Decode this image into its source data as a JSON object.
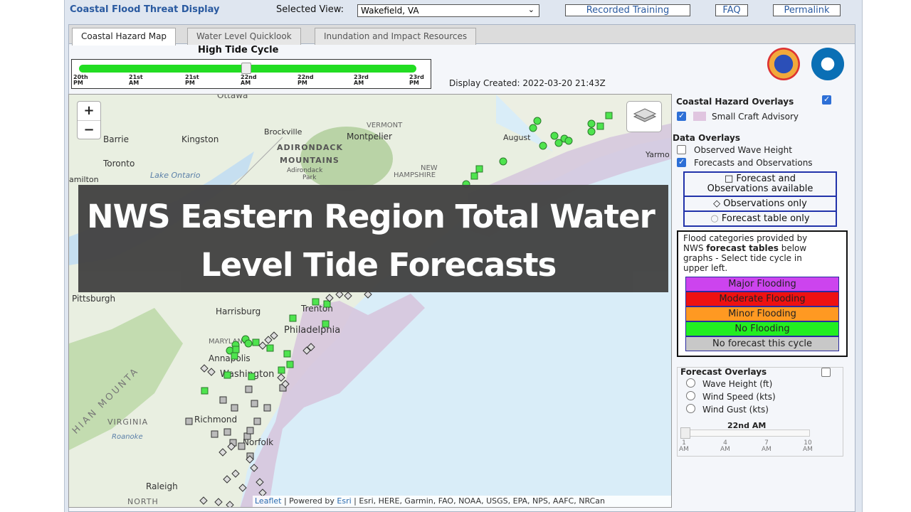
{
  "app": {
    "title": "Coastal Flood Threat Display",
    "selected_view_label": "Selected View:",
    "selected_view_value": "Wakefield, VA",
    "buttons": [
      "Recorded Training",
      "FAQ",
      "Permalink"
    ]
  },
  "tabs": [
    "Coastal Hazard Map",
    "Water Level Quicklook",
    "Inundation and Impact Resources"
  ],
  "tide": {
    "title": "High Tide Cycle",
    "ticks": [
      {
        "day": "20th",
        "ampm": "PM"
      },
      {
        "day": "21st",
        "ampm": "AM"
      },
      {
        "day": "21st",
        "ampm": "PM"
      },
      {
        "day": "22nd",
        "ampm": "AM"
      },
      {
        "day": "22nd",
        "ampm": "PM"
      },
      {
        "day": "23rd",
        "ampm": "AM"
      },
      {
        "day": "23rd",
        "ampm": "PM"
      }
    ],
    "selected_index": 3
  },
  "display_created": "Display Created: 2022-03-20 21:43Z",
  "map": {
    "zoom_in": "+",
    "zoom_out": "−",
    "places": [
      "Ottawa",
      "Barrie",
      "Kingston",
      "Brockville",
      "Montpelier",
      "VERMONT",
      "August",
      "Yarmo",
      "ADIRONDACK",
      "MOUNTAINS",
      "Adirondack",
      "Park",
      "Toronto",
      "Lake Ontario",
      "amilton",
      "NEW",
      "HAMPSHIRE",
      "Pittsburgh",
      "Harrisburg",
      "Trenton",
      "Philadelphia",
      "MARYLAND",
      "Annapolis",
      "Washington",
      "Richmond",
      "VIRGINIA",
      "Roanoke",
      "Norfolk",
      "Raleigh",
      "NORTH",
      "HIAN MOUNTA"
    ],
    "attribution_leaflet": "Leaflet",
    "attribution_powered": " | Powered by ",
    "attribution_esri": "Esri",
    "attribution_rest": " | Esri, HERE, Garmin, FAO, NOAA, USGS, EPA, NPS, AAFC, NRCan"
  },
  "overlay": {
    "line1": "NWS Eastern Region Total Water",
    "line2": "Level Tide Forecasts"
  },
  "sidebar": {
    "coastal_hazard_overlays": "Coastal Hazard Overlays",
    "small_craft_advisory": "Small Craft Advisory",
    "data_overlays": "Data Overlays",
    "observed_wave_height": "Observed Wave Height",
    "forecasts_and_observations": "Forecasts and Observations",
    "legend_forecast_obs_1": "Forecast and",
    "legend_forecast_obs_2": "Observations available",
    "legend_obs_only": "Observations only",
    "legend_forecast_table_only": "Forecast table only",
    "flood_info_1": "Flood categories provided by",
    "flood_info_2a": "NWS ",
    "flood_info_2b": "forecast tables",
    "flood_info_2c": " below",
    "flood_info_3": "graphs - Select tide cycle in",
    "flood_info_4": "upper left.",
    "flood_categories": [
      {
        "label": "Major Flooding",
        "color": "#cc44ee"
      },
      {
        "label": "Moderate Flooding",
        "color": "#ee1111"
      },
      {
        "label": "Minor Flooding",
        "color": "#ff9922"
      },
      {
        "label": "No Flooding",
        "color": "#22ee22"
      },
      {
        "label": "No forecast this cycle",
        "color": "#c8c8c8"
      }
    ],
    "forecast_overlays": "Forecast Overlays",
    "wave_height": "Wave Height (ft)",
    "wind_speed": "Wind Speed (kts)",
    "wind_gust": "Wind Gust (kts)",
    "slider_label": "22nd AM",
    "slider_ticks": [
      {
        "num": "1",
        "ampm": "AM"
      },
      {
        "num": "4",
        "ampm": "AM"
      },
      {
        "num": "7",
        "ampm": "AM"
      },
      {
        "num": "10",
        "ampm": "AM"
      }
    ]
  }
}
